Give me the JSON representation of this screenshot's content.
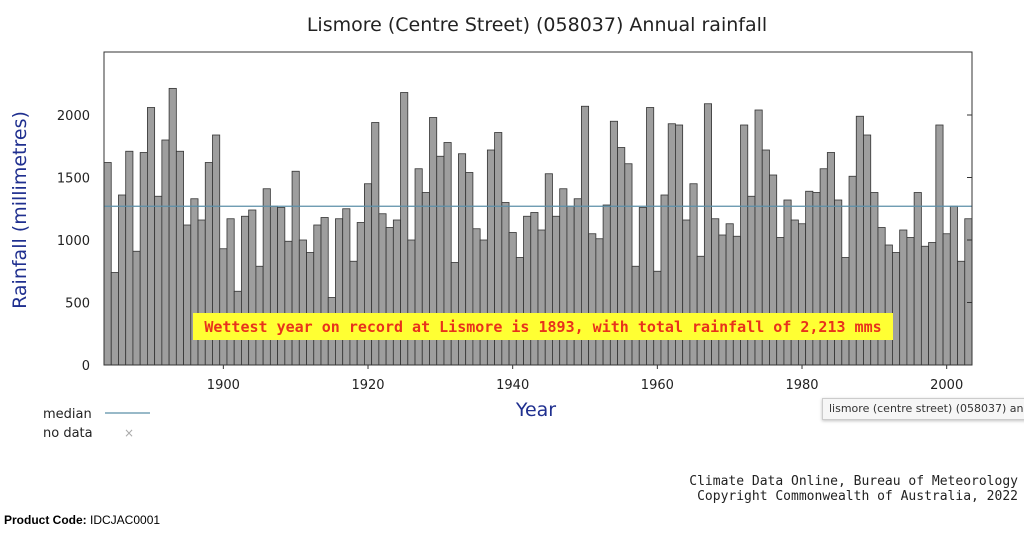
{
  "chart_data": {
    "type": "bar",
    "title": "Lismore (Centre Street) (058037) Annual rainfall",
    "xlabel": "Year",
    "ylabel": "Rainfall (millimetres)",
    "ylim": [
      0,
      2300
    ],
    "xlim": [
      1883.5,
      2003.5
    ],
    "yticks": [
      "0",
      "500",
      "1000",
      "1500",
      "2000"
    ],
    "xticks": [
      "1900",
      "1920",
      "1940",
      "1960",
      "1980",
      "2000"
    ],
    "grid": false,
    "start_year": 1884,
    "values": [
      1620,
      740,
      1360,
      1710,
      910,
      1700,
      2060,
      1350,
      1800,
      2213,
      1710,
      1120,
      1330,
      1160,
      1620,
      1840,
      930,
      1170,
      590,
      1190,
      1240,
      790,
      1410,
      1270,
      1260,
      990,
      1550,
      1000,
      900,
      1120,
      1180,
      540,
      1170,
      1250,
      830,
      1140,
      1450,
      1940,
      1210,
      1100,
      1160,
      2180,
      1000,
      1570,
      1380,
      1980,
      1670,
      1780,
      820,
      1690,
      1540,
      1090,
      1000,
      1720,
      1860,
      1300,
      1060,
      860,
      1190,
      1220,
      1080,
      1530,
      1190,
      1410,
      1270,
      1330,
      2070,
      1050,
      1010,
      1280,
      1950,
      1740,
      1610,
      790,
      1260,
      2060,
      750,
      1360,
      1930,
      1920,
      1160,
      1450,
      870,
      2090,
      1170,
      1040,
      1130,
      1030,
      1920,
      1350,
      2040,
      1720,
      1520,
      1020,
      1320,
      1160,
      1130,
      1390,
      1380,
      1570,
      1700,
      1320,
      860,
      1510,
      1990,
      1840,
      1380,
      1100,
      960,
      900,
      1080,
      1020,
      1380,
      950,
      980,
      1920,
      1050,
      1270,
      830,
      1170
    ],
    "median": 1270,
    "bar_color": "#9e9e9e",
    "median_color": "#5b8fa8",
    "legend": {
      "placement": "bottom-left",
      "median_label": "median",
      "nodata_label": "no data"
    },
    "annotation": "Wettest year on record at Lismore is 1893, with total rainfall of 2,213 mms",
    "annotation_bg": "#ffff33"
  },
  "credits": {
    "line1": "Climate Data Online, Bureau of Meteorology",
    "line2": "Copyright Commonwealth of Australia, 2022"
  },
  "product": {
    "label": "Product Code:",
    "code": "IDCJAC0001"
  },
  "tooltip": "lismore (centre street) (058037) an"
}
